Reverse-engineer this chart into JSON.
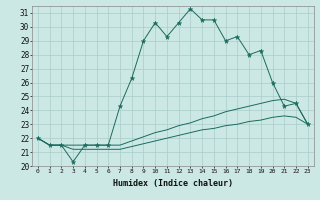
{
  "title": "",
  "xlabel": "Humidex (Indice chaleur)",
  "ylabel": "",
  "background_color": "#cce8e4",
  "grid_color": "#aaccca",
  "line_color": "#1a6b5e",
  "xlim": [
    -0.5,
    23.5
  ],
  "ylim": [
    20,
    31.5
  ],
  "xticks": [
    0,
    1,
    2,
    3,
    4,
    5,
    6,
    7,
    8,
    9,
    10,
    11,
    12,
    13,
    14,
    15,
    16,
    17,
    18,
    19,
    20,
    21,
    22,
    23
  ],
  "yticks": [
    20,
    21,
    22,
    23,
    24,
    25,
    26,
    27,
    28,
    29,
    30,
    31
  ],
  "series1_y": [
    22.0,
    21.5,
    21.5,
    20.3,
    21.5,
    21.5,
    21.5,
    24.3,
    26.3,
    29.0,
    30.3,
    29.3,
    30.3,
    31.3,
    30.5,
    30.5,
    29.0,
    29.3,
    28.0,
    28.3,
    26.0,
    24.3,
    24.5,
    23.0
  ],
  "series2_y": [
    22.0,
    21.5,
    21.5,
    21.5,
    21.5,
    21.5,
    21.5,
    21.5,
    21.8,
    22.1,
    22.4,
    22.6,
    22.9,
    23.1,
    23.4,
    23.6,
    23.9,
    24.1,
    24.3,
    24.5,
    24.7,
    24.8,
    24.5,
    23.0
  ],
  "series3_y": [
    22.0,
    21.5,
    21.5,
    21.2,
    21.2,
    21.2,
    21.2,
    21.2,
    21.4,
    21.6,
    21.8,
    22.0,
    22.2,
    22.4,
    22.6,
    22.7,
    22.9,
    23.0,
    23.2,
    23.3,
    23.5,
    23.6,
    23.5,
    23.0
  ]
}
